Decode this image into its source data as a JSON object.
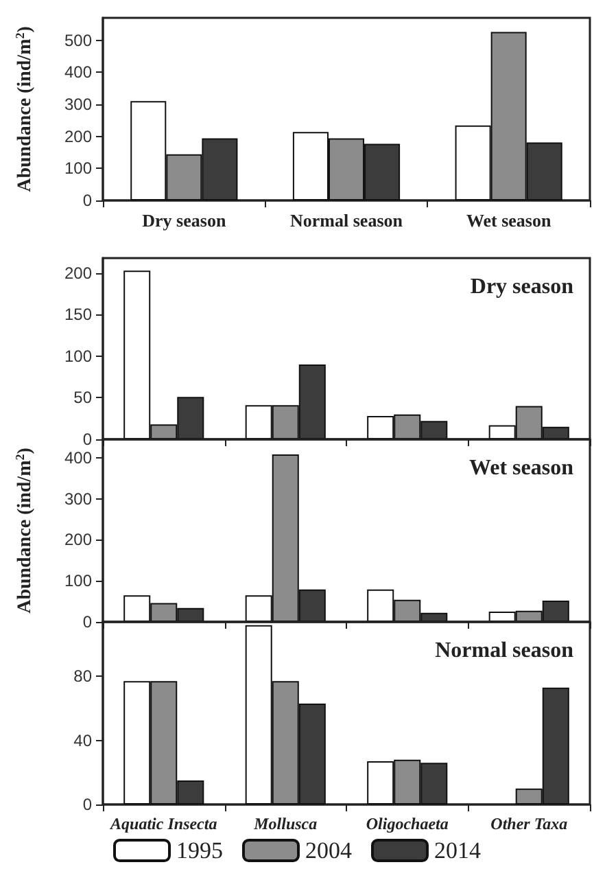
{
  "chart_data": [
    {
      "type": "bar",
      "ylabel": "Abundance (ind/m$^{2}$)",
      "categories": [
        "Dry season",
        "Normal season",
        "Wet season"
      ],
      "ylim": [
        0,
        570
      ],
      "yticks": [
        0,
        100,
        200,
        300,
        400,
        500
      ],
      "grid": false,
      "legend": false,
      "series": [
        {
          "color": "#ffffff",
          "values": [
            310,
            214,
            234
          ]
        },
        {
          "color": "#8c8c8c",
          "values": [
            144,
            194,
            526
          ]
        },
        {
          "color": "#3c3c3c",
          "values": [
            194,
            177,
            181
          ]
        }
      ]
    },
    {
      "type": "bar",
      "title": "Dry season",
      "categories": [
        null,
        null,
        null,
        null
      ],
      "ylim": [
        0,
        218
      ],
      "yticks": [
        0,
        50,
        100,
        150,
        200
      ],
      "grid": false,
      "legend": false,
      "series": [
        {
          "color": "#ffffff",
          "values": [
            203,
            41,
            28,
            17
          ]
        },
        {
          "color": "#8c8c8c",
          "values": [
            18,
            41,
            30,
            40
          ]
        },
        {
          "color": "#3c3c3c",
          "values": [
            51,
            90,
            22,
            15
          ]
        }
      ]
    },
    {
      "type": "bar",
      "title": "Wet season",
      "ylabel": "Abundance (ind/m$^{2}$)",
      "categories": [
        null,
        null,
        null,
        null
      ],
      "ylim": [
        0,
        445
      ],
      "yticks": [
        0,
        100,
        200,
        300,
        400
      ],
      "grid": false,
      "legend": false,
      "series": [
        {
          "color": "#ffffff",
          "values": [
            65,
            65,
            79,
            25
          ]
        },
        {
          "color": "#8c8c8c",
          "values": [
            46,
            408,
            54,
            27
          ]
        },
        {
          "color": "#3c3c3c",
          "values": [
            34,
            79,
            22,
            52
          ]
        }
      ]
    },
    {
      "type": "bar",
      "title": "Normal season",
      "categories": [
        "Aquatic Insecta",
        "Mollusca",
        "Oligochaeta",
        "Other Taxa"
      ],
      "ylim": [
        0,
        114
      ],
      "yticks": [
        0,
        40,
        80
      ],
      "grid": false,
      "legend": "bottom",
      "series": [
        {
          "name": "1995",
          "color": "#ffffff",
          "values": [
            77,
            112,
            27,
            0
          ]
        },
        {
          "name": "2004",
          "color": "#8c8c8c",
          "values": [
            77,
            77,
            28,
            10
          ]
        },
        {
          "name": "2014",
          "color": "#3c3c3c",
          "values": [
            15,
            63,
            26,
            73
          ]
        }
      ]
    }
  ]
}
